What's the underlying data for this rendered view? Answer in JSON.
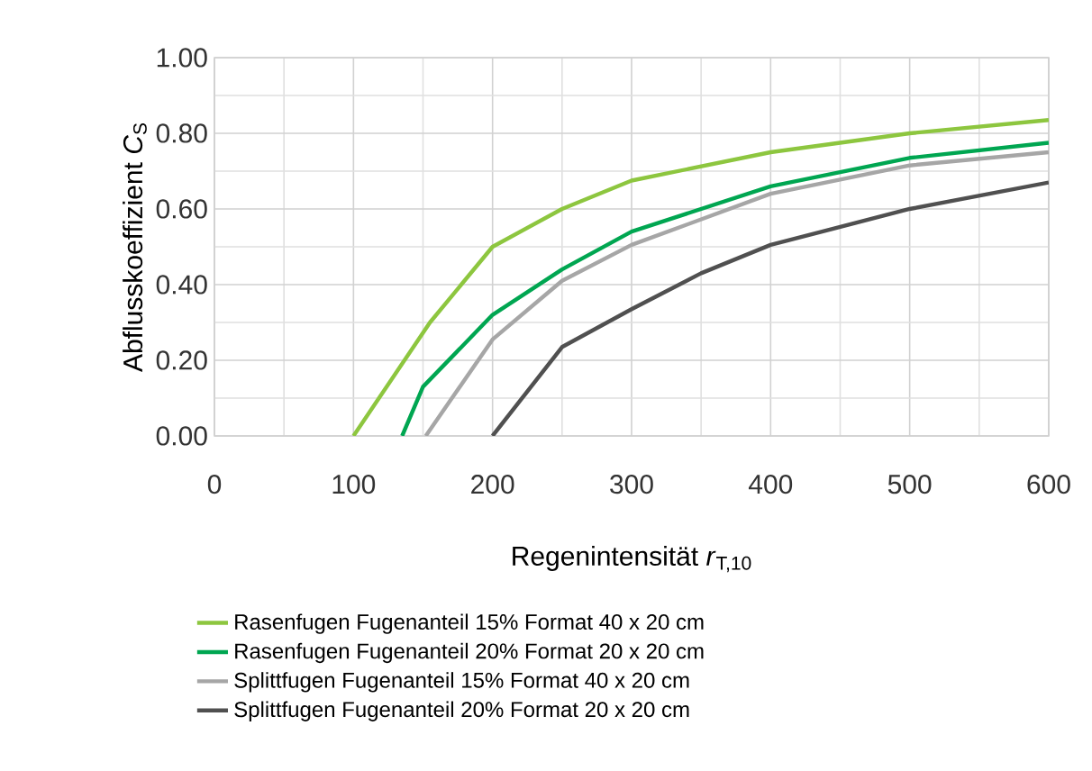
{
  "chart_data": {
    "type": "line",
    "xlabel": "Regenintensität *r*$_{T,10}$",
    "ylabel": "Abflusskoeffizient *C*$_{S}$",
    "xlim": [
      0,
      600
    ],
    "ylim": [
      0,
      1
    ],
    "xticks": [
      0,
      100,
      200,
      300,
      400,
      500,
      600
    ],
    "yticks": [
      {
        "value": 0,
        "label": "0.00"
      },
      {
        "value": 0.2,
        "label": "0.20"
      },
      {
        "value": 0.4,
        "label": "0.40"
      },
      {
        "value": 0.6,
        "label": "0.60"
      },
      {
        "value": 0.8,
        "label": "0.80"
      },
      {
        "value": 1,
        "label": "1.00"
      }
    ],
    "grid": true,
    "legend": "bottom",
    "marker": "none",
    "line_style": "solid",
    "series": [
      {
        "name": "Rasenfugen Fugenanteil 15% Format 40 x 20 cm",
        "color": "#8dc63f",
        "x": [
          100,
          155,
          200,
          250,
          300,
          400,
          500,
          600
        ],
        "values": [
          0,
          0.3,
          0.5,
          0.6,
          0.675,
          0.75,
          0.8,
          0.835
        ]
      },
      {
        "name": "Rasenfugen Fugenanteil 20% Format 20 x 20 cm",
        "color": "#00a651",
        "x": [
          135,
          150,
          200,
          250,
          300,
          400,
          500,
          600
        ],
        "values": [
          0,
          0.13,
          0.32,
          0.44,
          0.54,
          0.66,
          0.735,
          0.775
        ]
      },
      {
        "name": "Splittfugen Fugenanteil 15% Format 40 x 20 cm",
        "color": "#a6a6a6",
        "x": [
          152,
          200,
          250,
          300,
          400,
          500,
          600
        ],
        "values": [
          0,
          0.255,
          0.41,
          0.505,
          0.64,
          0.715,
          0.75
        ]
      },
      {
        "name": "Splittfugen Fugenanteil 20% Format 20 x 20 cm",
        "color": "#505050",
        "x": [
          200,
          250,
          300,
          350,
          400,
          500,
          600
        ],
        "values": [
          0,
          0.235,
          0.335,
          0.43,
          0.505,
          0.6,
          0.67
        ]
      }
    ]
  }
}
